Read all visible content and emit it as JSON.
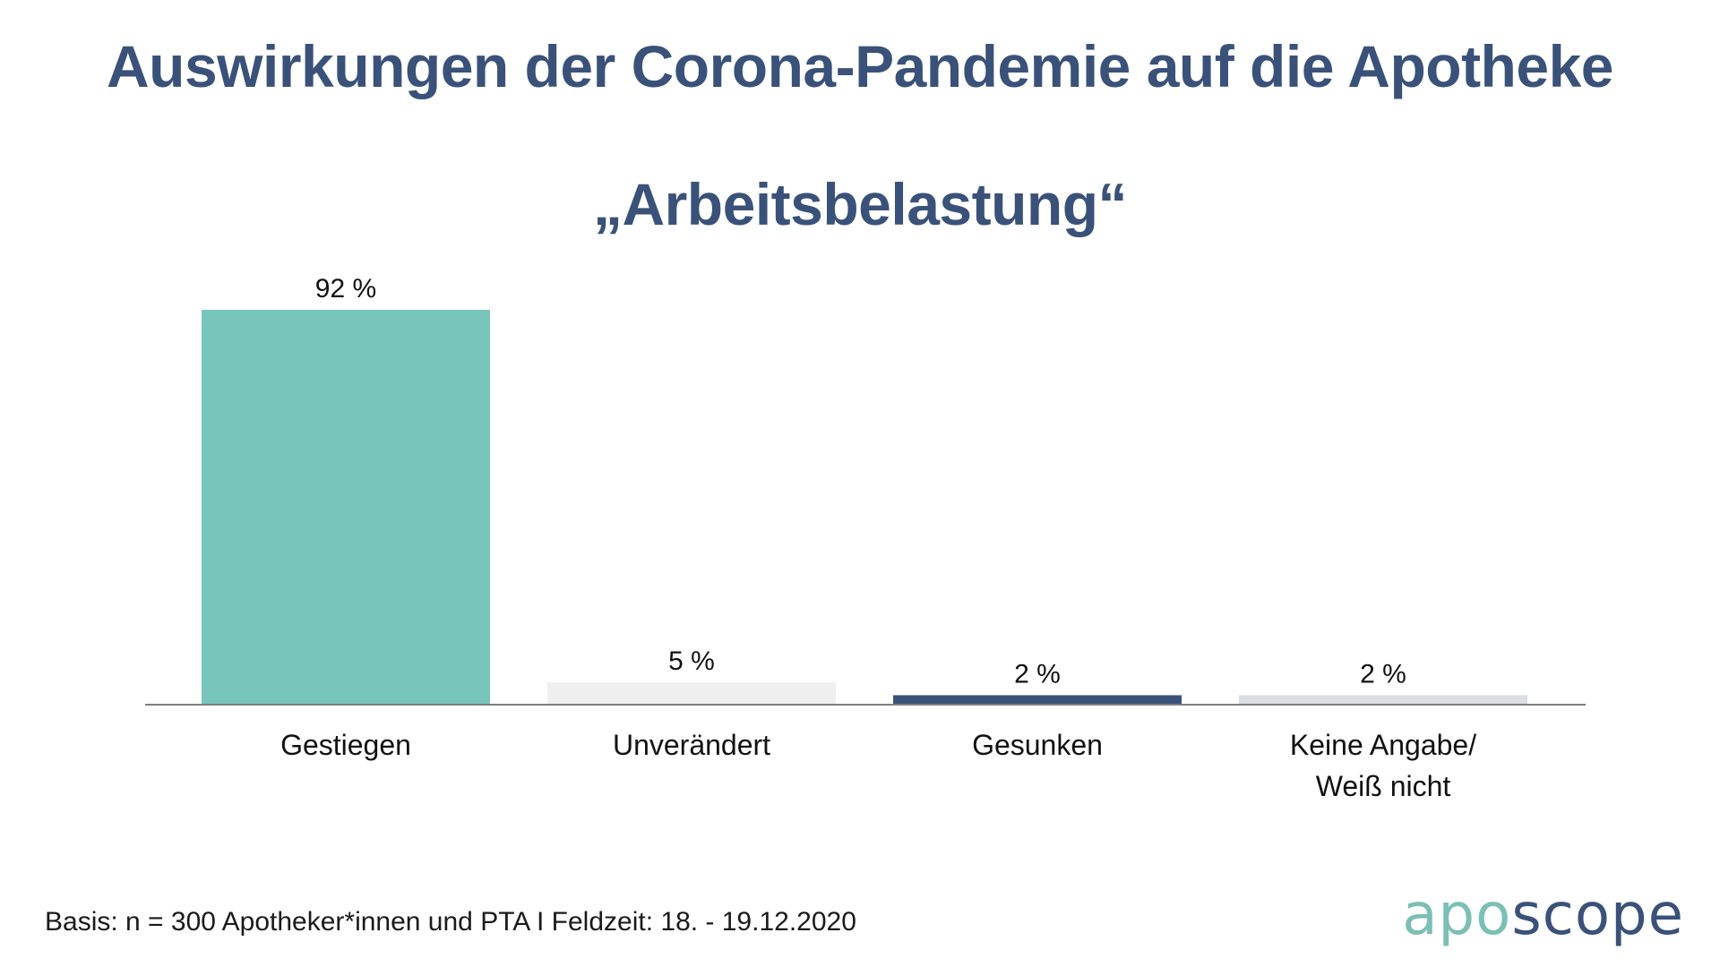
{
  "title": "Auswirkungen der Corona-Pandemie auf die Apotheke",
  "subtitle": "„Arbeitsbelastung“",
  "footnote": "Basis: n = 300 Apotheker*innen und PTA I Feldzeit: 18. - 19.12.2020",
  "logo": {
    "part1": "apo",
    "part2": "scope"
  },
  "colors": {
    "title": "#3a5279",
    "axis": "#7f7f7f"
  },
  "chart_data": {
    "type": "bar",
    "categories": [
      "Gestiegen",
      "Unverändert",
      "Gesunken",
      "Keine Angabe/\nWeiß nicht"
    ],
    "values": [
      92,
      5,
      2,
      2
    ],
    "value_labels": [
      "92 %",
      "5 %",
      "2 %",
      "2 %"
    ],
    "colors": [
      "#78c5bb",
      "#efefef",
      "#3a5279",
      "#dbdee2"
    ],
    "unit": "%",
    "ylim": [
      0,
      100
    ],
    "grid": false,
    "legend": "none"
  }
}
